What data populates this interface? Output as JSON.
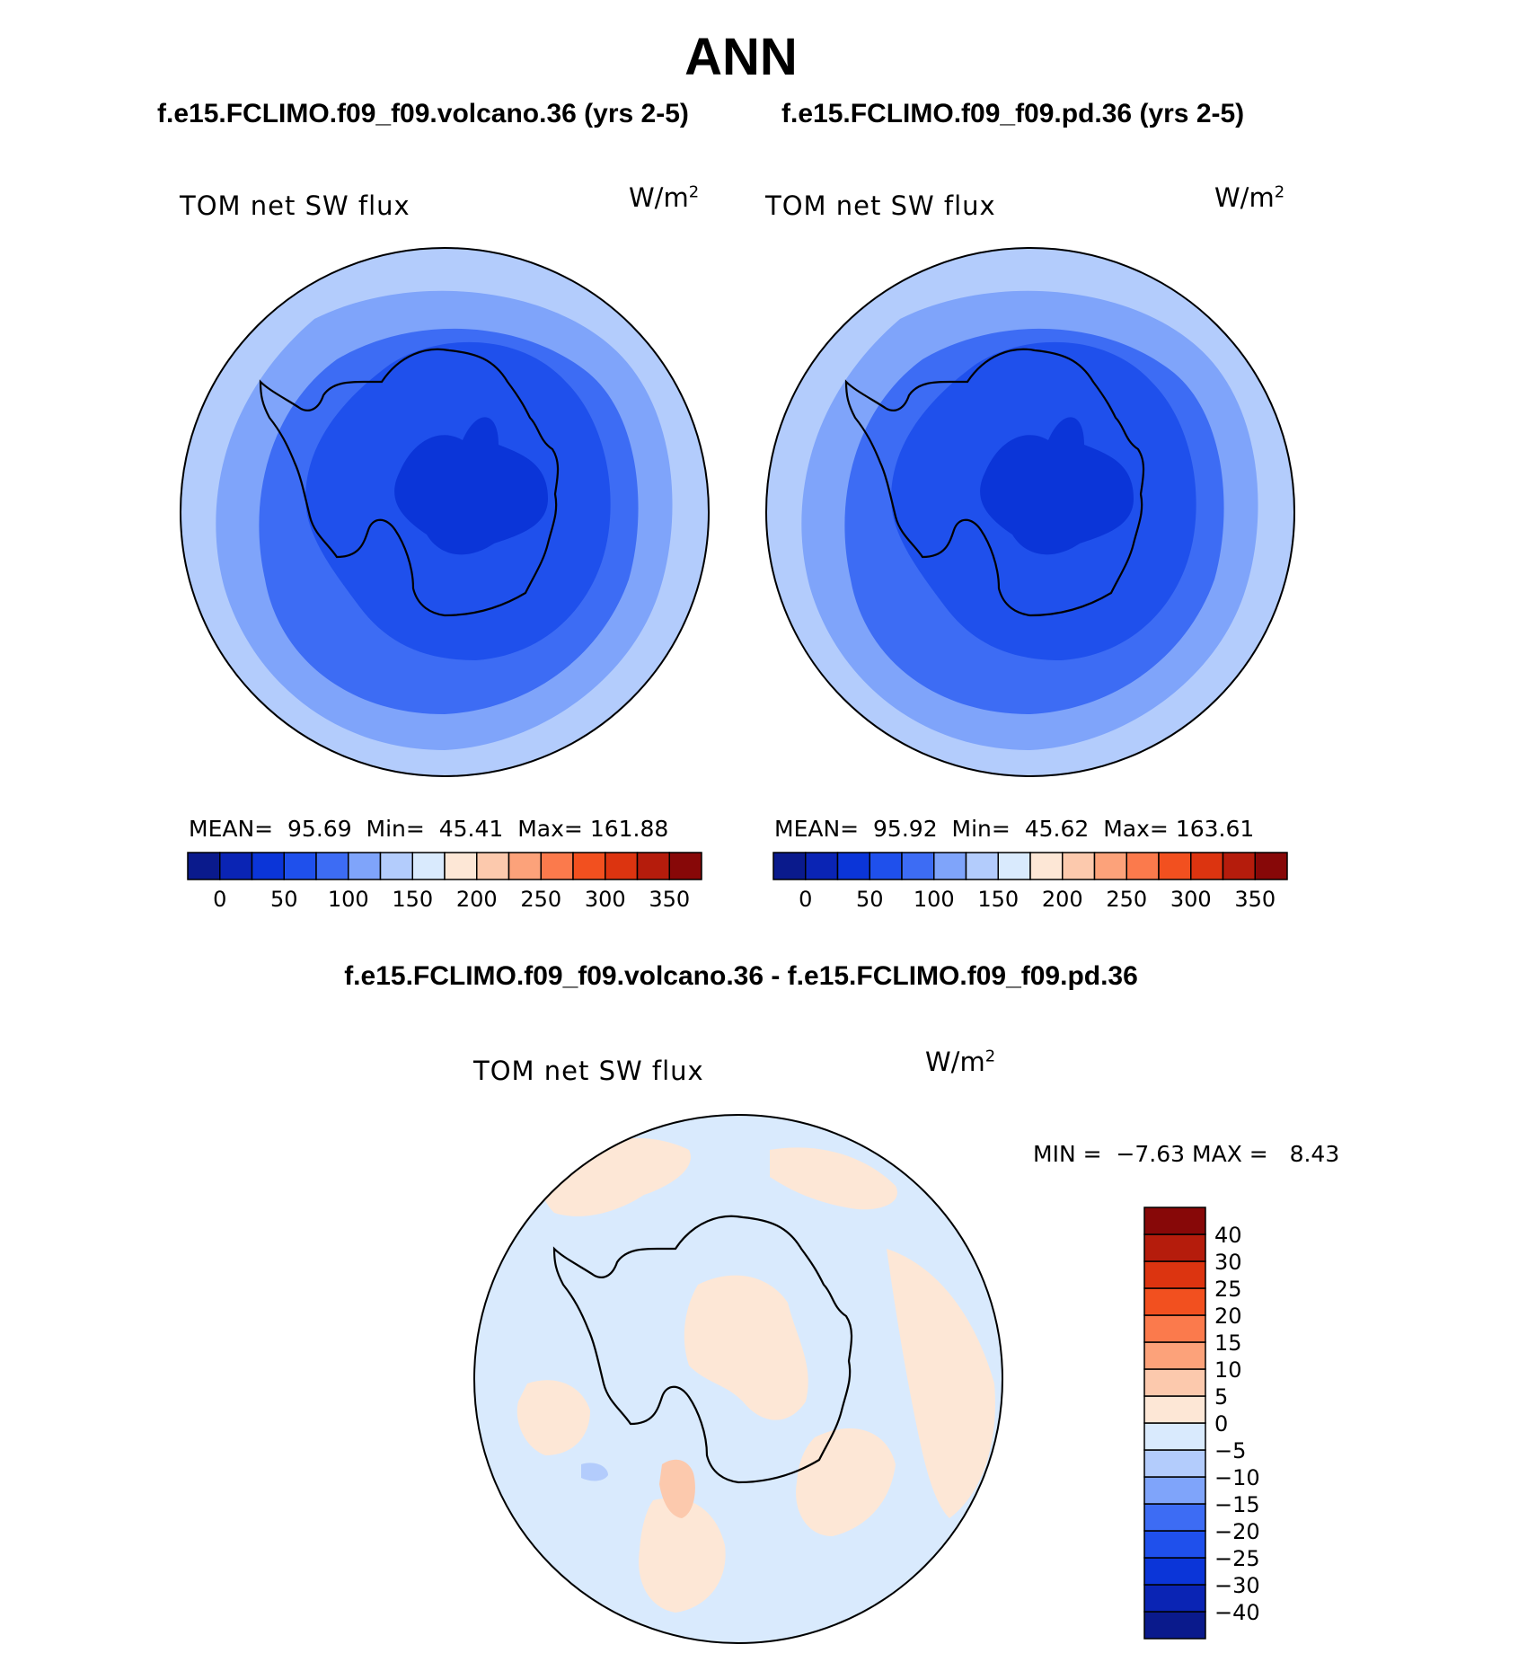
{
  "title": "ANN",
  "panels": [
    {
      "case": "f.e15.FCLIMO.f09_f09.volcano.36 (yrs 2-5)",
      "label": "TOM net SW flux",
      "units_base": "W/m",
      "units_exp": "2",
      "stats": {
        "mean_label": "MEAN=",
        "mean": "95.69",
        "min_label": "Min=",
        "min": "45.41",
        "max_label": "Max=",
        "max": "161.88"
      }
    },
    {
      "case": "f.e15.FCLIMO.f09_f09.pd.36 (yrs 2-5)",
      "label": "TOM net SW flux",
      "units_base": "W/m",
      "units_exp": "2",
      "stats": {
        "mean_label": "MEAN=",
        "mean": "95.92",
        "min_label": "Min=",
        "min": "45.62",
        "max_label": "Max=",
        "max": "163.61"
      }
    }
  ],
  "diff": {
    "case": "f.e15.FCLIMO.f09_f09.volcano.36 - f.e15.FCLIMO.f09_f09.pd.36",
    "label": "TOM net SW flux",
    "units_base": "W/m",
    "units_exp": "2",
    "stats": {
      "min_label": "MIN =",
      "min": "−7.63",
      "max_label": "MAX =",
      "max": "8.43"
    }
  },
  "colors": {
    "abs_scale": [
      "#0a1a8c",
      "#0a24b4",
      "#0b35d8",
      "#1f50ec",
      "#3d6cf4",
      "#7fa4fa",
      "#b3ccfc",
      "#d9eafd",
      "#fde7d6",
      "#fcc9ad",
      "#fca27a",
      "#fb7a4c",
      "#f2501f",
      "#dc3410",
      "#b51c0c",
      "#870808"
    ],
    "diff_scale": [
      "#0a1a8c",
      "#0a24b4",
      "#0b35d8",
      "#1f50ec",
      "#3d6cf4",
      "#7fa4fa",
      "#b3ccfc",
      "#d9eafd",
      "#fde7d6",
      "#fcc9ad",
      "#fca27a",
      "#fb7a4c",
      "#f2501f",
      "#dc3410",
      "#b51c0c",
      "#870808"
    ],
    "land_line": "#000000"
  },
  "chart_data": [
    {
      "type": "heatmap",
      "projection": "south polar stereographic",
      "title": "f.e15.FCLIMO.f09_f09.volcano.36 (yrs 2-5)",
      "field": "TOM net SW flux",
      "units": "W/m2",
      "colorbar": {
        "orientation": "horizontal",
        "tick_labels": [
          "0",
          "50",
          "100",
          "150",
          "200",
          "250",
          "300",
          "350"
        ],
        "n_bins": 16
      },
      "mean": 95.69,
      "min": 45.41,
      "max": 161.88,
      "contour_levels": [
        {
          "level": "~150",
          "color_index": 6
        },
        {
          "level": "~120",
          "color_index": 5
        },
        {
          "level": "~100",
          "color_index": 4
        },
        {
          "level": "~75",
          "color_index": 3
        },
        {
          "level": "~50",
          "color_index": 2
        }
      ]
    },
    {
      "type": "heatmap",
      "projection": "south polar stereographic",
      "title": "f.e15.FCLIMO.f09_f09.pd.36 (yrs 2-5)",
      "field": "TOM net SW flux",
      "units": "W/m2",
      "colorbar": {
        "orientation": "horizontal",
        "tick_labels": [
          "0",
          "50",
          "100",
          "150",
          "200",
          "250",
          "300",
          "350"
        ],
        "n_bins": 16
      },
      "mean": 95.92,
      "min": 45.62,
      "max": 163.61,
      "contour_levels": [
        {
          "level": "~150",
          "color_index": 6
        },
        {
          "level": "~120",
          "color_index": 5
        },
        {
          "level": "~100",
          "color_index": 4
        },
        {
          "level": "~75",
          "color_index": 3
        },
        {
          "level": "~50",
          "color_index": 2
        }
      ]
    },
    {
      "type": "heatmap",
      "projection": "south polar stereographic",
      "title": "f.e15.FCLIMO.f09_f09.volcano.36 - f.e15.FCLIMO.f09_f09.pd.36",
      "field": "TOM net SW flux",
      "units": "W/m2",
      "colorbar": {
        "orientation": "vertical",
        "tick_labels": [
          "−40",
          "−30",
          "−25",
          "−20",
          "−15",
          "−10",
          "−5",
          "0",
          "5",
          "10",
          "15",
          "20",
          "25",
          "30",
          "40"
        ],
        "n_bins": 16
      },
      "min": -7.63,
      "max": 8.43
    }
  ]
}
